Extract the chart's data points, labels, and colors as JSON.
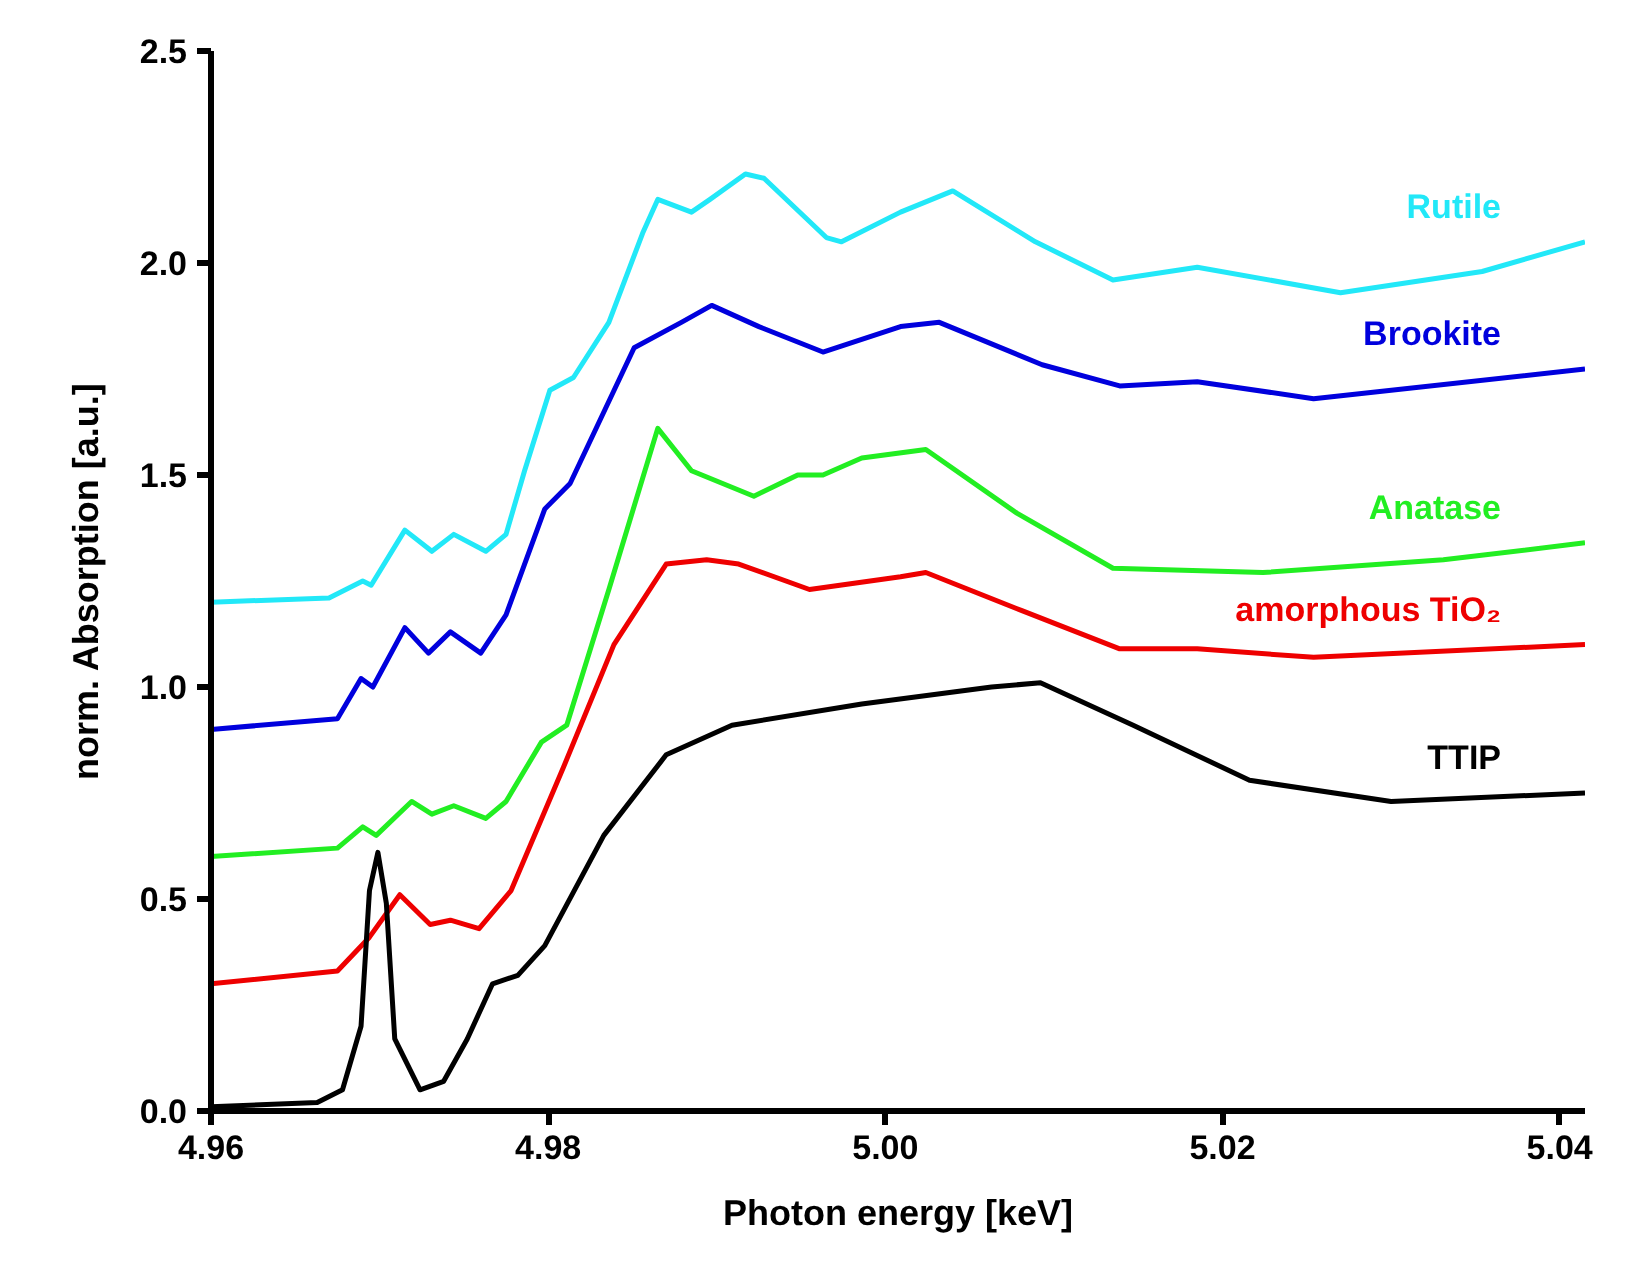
{
  "chart_data": {
    "type": "line",
    "xlabel": "Photon energy [keV]",
    "ylabel": "norm. Absorption [a.u.]",
    "xlim": [
      4.96,
      5.0415
    ],
    "ylim": [
      0,
      2.5
    ],
    "xticks": [
      4.96,
      4.98,
      {
        "value": 5.0,
        "label": "5.00"
      },
      5.02,
      5.04
    ],
    "yticks": [
      {
        "value": 0,
        "label": "0.0"
      },
      0.5,
      {
        "value": 1,
        "label": "1.0"
      },
      1.5,
      {
        "value": 2,
        "label": "2.0"
      },
      2.5
    ],
    "grid": false,
    "legend": false,
    "marker": "none",
    "line_style": "solid",
    "series": [
      {
        "name": "Rutile",
        "color": "#22e8f8",
        "x": [
          4.96,
          4.967,
          4.969,
          4.9695,
          4.9715,
          4.9731,
          4.9744,
          4.9763,
          4.9775,
          4.9786,
          4.9801,
          4.9815,
          4.9836,
          4.9856,
          4.9865,
          4.9885,
          4.9896,
          4.9917,
          4.9928,
          4.9965,
          4.9974,
          5.0009,
          5.004,
          5.0089,
          5.0135,
          5.0185,
          5.027,
          5.0354,
          5.0415
        ],
        "values": [
          1.2,
          1.21,
          1.25,
          1.24,
          1.37,
          1.32,
          1.36,
          1.32,
          1.36,
          1.51,
          1.7,
          1.73,
          1.86,
          2.07,
          2.15,
          2.12,
          2.15,
          2.21,
          2.2,
          2.06,
          2.05,
          2.12,
          2.17,
          2.05,
          1.96,
          1.99,
          1.93,
          1.98,
          2.05
        ]
      },
      {
        "name": "Brookite",
        "color": "#0000dd",
        "x": [
          4.96,
          4.9675,
          4.9689,
          4.9696,
          4.9715,
          4.9729,
          4.9742,
          4.976,
          4.9775,
          4.9798,
          4.9813,
          4.9851,
          4.9879,
          4.9897,
          4.9925,
          4.9963,
          5.0009,
          5.0032,
          5.0093,
          5.0139,
          5.0185,
          5.0254,
          5.0415
        ],
        "values": [
          0.9,
          0.925,
          1.02,
          1.0,
          1.14,
          1.08,
          1.13,
          1.08,
          1.17,
          1.42,
          1.48,
          1.8,
          1.86,
          1.9,
          1.85,
          1.79,
          1.85,
          1.86,
          1.76,
          1.71,
          1.72,
          1.68,
          1.75
        ]
      },
      {
        "name": "Anatase",
        "color": "#22ee22",
        "x": [
          4.96,
          4.9675,
          4.969,
          4.9698,
          4.9719,
          4.9731,
          4.9744,
          4.9763,
          4.9775,
          4.9796,
          4.9811,
          4.9836,
          4.9865,
          4.9885,
          4.9922,
          4.9948,
          4.9963,
          4.9986,
          5.0024,
          5.0078,
          5.0135,
          5.0224,
          5.0331,
          5.0415
        ],
        "values": [
          0.6,
          0.62,
          0.67,
          0.65,
          0.73,
          0.7,
          0.72,
          0.69,
          0.73,
          0.87,
          0.91,
          1.23,
          1.61,
          1.51,
          1.45,
          1.5,
          1.5,
          1.54,
          1.56,
          1.41,
          1.28,
          1.27,
          1.3,
          1.34
        ]
      },
      {
        "name": "amorphous TiO₂",
        "color": "#ee0000",
        "x": [
          4.96,
          4.9675,
          4.9694,
          4.9712,
          4.973,
          4.9742,
          4.9759,
          4.9778,
          4.9809,
          4.9839,
          4.987,
          4.9894,
          4.9913,
          4.9955,
          5.0009,
          5.0024,
          5.0081,
          5.0139,
          5.0185,
          5.0254,
          5.0415
        ],
        "values": [
          0.3,
          0.33,
          0.41,
          0.51,
          0.44,
          0.45,
          0.43,
          0.52,
          0.81,
          1.1,
          1.29,
          1.3,
          1.29,
          1.23,
          1.26,
          1.27,
          1.18,
          1.09,
          1.09,
          1.07,
          1.1
        ]
      },
      {
        "name": "TTIP",
        "color": "#000000",
        "x": [
          4.96,
          4.9663,
          4.9678,
          4.9689,
          4.9694,
          4.9699,
          4.9704,
          4.9709,
          4.9724,
          4.9738,
          4.9752,
          4.9767,
          4.9782,
          4.9798,
          4.9833,
          4.987,
          4.9909,
          4.9986,
          5.0063,
          5.0092,
          5.0147,
          5.0216,
          5.03,
          5.0415
        ],
        "values": [
          0.01,
          0.02,
          0.05,
          0.2,
          0.52,
          0.61,
          0.49,
          0.17,
          0.05,
          0.07,
          0.17,
          0.3,
          0.32,
          0.39,
          0.65,
          0.84,
          0.91,
          0.96,
          1.0,
          1.01,
          0.91,
          0.78,
          0.73,
          0.75
        ]
      }
    ]
  }
}
